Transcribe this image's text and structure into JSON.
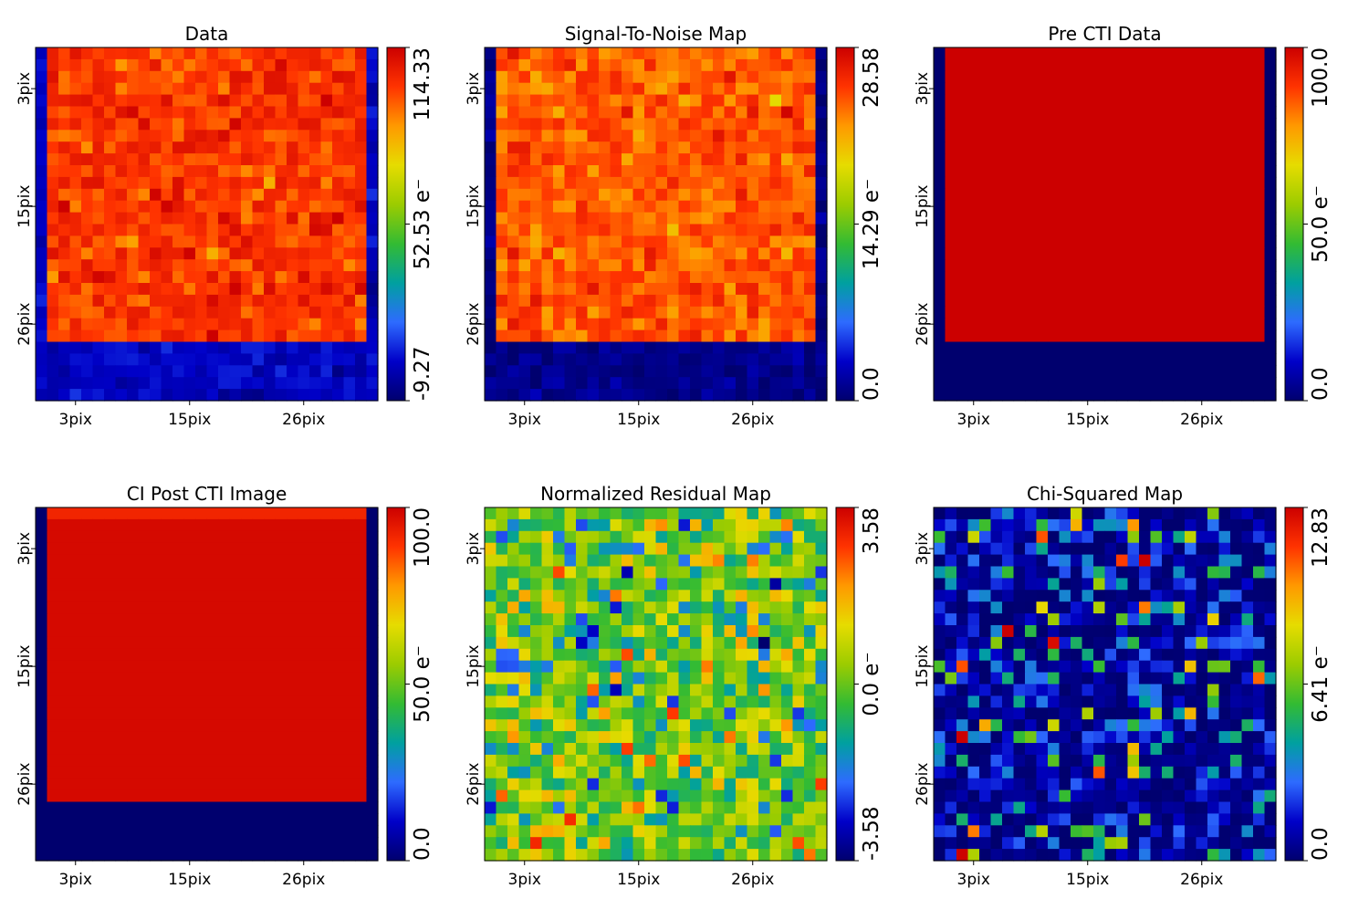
{
  "figure_title": "",
  "chart_data": [
    {
      "type": "heatmap",
      "title": "Data",
      "pattern": "charge_injection",
      "grid_size": 30,
      "xticks": [
        "3pix",
        "15pix",
        "26pix"
      ],
      "yticks": [
        "3pix",
        "15pix",
        "26pix"
      ],
      "colorbar": {
        "min_label": "-9.27",
        "mid_label": "52.53 e⁻",
        "max_label": "114.33",
        "min": -9.27,
        "max": 114.33
      },
      "region_values": {
        "injection": 101.0,
        "background": 3.0,
        "noise": 5.5
      }
    },
    {
      "type": "heatmap",
      "title": "Signal-To-Noise Map",
      "pattern": "charge_injection",
      "grid_size": 30,
      "xticks": [
        "3pix",
        "15pix",
        "26pix"
      ],
      "yticks": [
        "3pix",
        "15pix",
        "26pix"
      ],
      "colorbar": {
        "min_label": "0.0",
        "mid_label": "14.29 e⁻",
        "max_label": "28.58",
        "min": 0.0,
        "max": 28.58
      },
      "region_values": {
        "injection": 24.2,
        "background": 0.9,
        "noise": 1.3
      }
    },
    {
      "type": "heatmap",
      "title": "Pre CTI Data",
      "pattern": "charge_injection_clean",
      "grid_size": 30,
      "xticks": [
        "3pix",
        "15pix",
        "26pix"
      ],
      "yticks": [
        "3pix",
        "15pix",
        "26pix"
      ],
      "colorbar": {
        "min_label": "0.0",
        "mid_label": "50.0 e⁻",
        "max_label": "100.0",
        "min": 0.0,
        "max": 100.0
      },
      "region_values": {
        "injection": 100.0,
        "background": 0.0
      }
    },
    {
      "type": "heatmap",
      "title": "CI Post CTI Image",
      "pattern": "charge_injection_post_cti",
      "grid_size": 30,
      "xticks": [
        "3pix",
        "15pix",
        "26pix"
      ],
      "yticks": [
        "3pix",
        "15pix",
        "26pix"
      ],
      "colorbar": {
        "min_label": "0.0",
        "mid_label": "50.0 e⁻",
        "max_label": "100.0",
        "min": 0.0,
        "max": 100.0
      },
      "region_values": {
        "injection": 98.0,
        "first_row": 92.0,
        "background": 0.0
      }
    },
    {
      "type": "heatmap",
      "title": "Normalized Residual Map",
      "pattern": "gaussian_residual",
      "grid_size": 30,
      "xticks": [
        "3pix",
        "15pix",
        "26pix"
      ],
      "yticks": [
        "3pix",
        "15pix",
        "26pix"
      ],
      "colorbar": {
        "min_label": "-3.58",
        "mid_label": "0.0 e⁻",
        "max_label": "3.58",
        "min": -3.58,
        "max": 3.58
      }
    },
    {
      "type": "heatmap",
      "title": "Chi-Squared Map",
      "pattern": "chi_squared",
      "grid_size": 30,
      "xticks": [
        "3pix",
        "15pix",
        "26pix"
      ],
      "yticks": [
        "3pix",
        "15pix",
        "26pix"
      ],
      "colorbar": {
        "min_label": "0.0",
        "mid_label": "6.41 e⁻",
        "max_label": "12.83",
        "min": 0.0,
        "max": 12.83
      }
    }
  ],
  "colormap": {
    "name": "jet-like",
    "stops": [
      "#00006e",
      "#0000c8",
      "#2e6bff",
      "#00a0a0",
      "#33bb33",
      "#9ccc00",
      "#e6dc00",
      "#ff9900",
      "#ff3300",
      "#cc0000"
    ]
  }
}
